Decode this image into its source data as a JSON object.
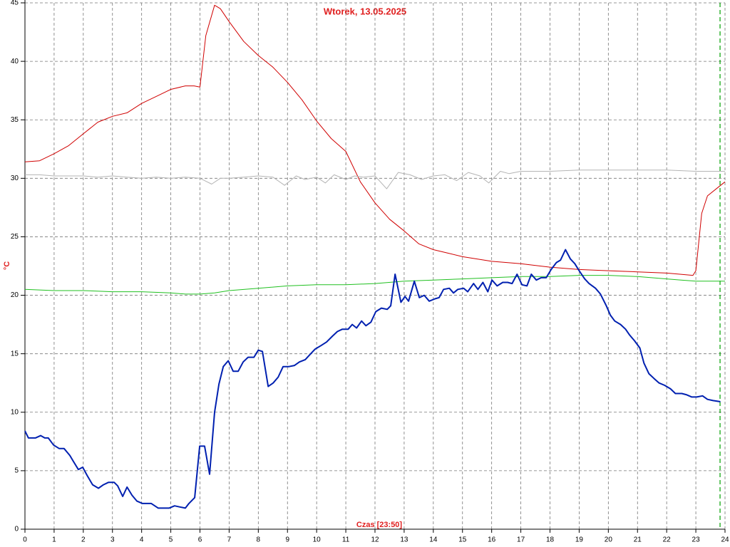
{
  "chart_data": {
    "type": "line",
    "title": "Wtorek, 13.05.2025",
    "x_label": "Czas [23:50]",
    "y_label": "°C",
    "xlim": [
      0,
      24
    ],
    "ylim": [
      0,
      45
    ],
    "xticks": [
      0,
      1,
      2,
      3,
      4,
      5,
      6,
      7,
      8,
      9,
      10,
      11,
      12,
      13,
      14,
      15,
      16,
      17,
      18,
      19,
      20,
      21,
      22,
      23,
      24
    ],
    "yticks": [
      0,
      5,
      10,
      15,
      20,
      25,
      30,
      35,
      40,
      45
    ],
    "grid": true,
    "marker_x": 23.83,
    "marker_color": "#00a000",
    "series": [
      {
        "color": "#d00000",
        "width": 1,
        "x": [
          0,
          0.5,
          1,
          1.5,
          2,
          2.5,
          3,
          3.5,
          4,
          4.5,
          5,
          5.5,
          5.8,
          6,
          6.2,
          6.5,
          6.7,
          7,
          7.5,
          8,
          8.5,
          9,
          9.5,
          10,
          10.5,
          11,
          11.5,
          12,
          12.5,
          13,
          13.5,
          14,
          14.5,
          15,
          16,
          17,
          18,
          19,
          20,
          21,
          22,
          22.9,
          23,
          23.2,
          23.4,
          23.8,
          24
        ],
        "values": [
          31.4,
          31.5,
          32.1,
          32.8,
          33.8,
          34.8,
          35.3,
          35.6,
          36.4,
          37.0,
          37.6,
          37.9,
          37.9,
          37.8,
          42.2,
          44.8,
          44.5,
          43.4,
          41.7,
          40.5,
          39.5,
          38.2,
          36.7,
          34.9,
          33.4,
          32.3,
          29.7,
          27.9,
          26.5,
          25.5,
          24.4,
          23.9,
          23.6,
          23.3,
          22.9,
          22.7,
          22.4,
          22.2,
          22.1,
          22.0,
          21.9,
          21.7,
          22.1,
          27.0,
          28.5,
          29.3,
          29.7
        ]
      },
      {
        "color": "#b4b4b4",
        "width": 1,
        "x": [
          0,
          0.5,
          1,
          1.5,
          2,
          2.5,
          3,
          3.5,
          4,
          4.5,
          5,
          5.5,
          6,
          6.4,
          6.7,
          7,
          7.5,
          8,
          8.5,
          8.9,
          9.3,
          9.6,
          10,
          10.3,
          10.6,
          11,
          11.3,
          11.6,
          12,
          12.4,
          12.8,
          13.2,
          13.6,
          14,
          14.4,
          14.8,
          15.2,
          15.6,
          15.9,
          16.3,
          16.6,
          17,
          17.5,
          18,
          19,
          20,
          21,
          22,
          23,
          24
        ],
        "values": [
          30.3,
          30.3,
          30.2,
          30.2,
          30.2,
          30.1,
          30.2,
          30.1,
          30.0,
          30.1,
          30.0,
          30.1,
          30.0,
          29.5,
          30.0,
          30.0,
          30.1,
          30.2,
          30.1,
          29.4,
          30.2,
          29.9,
          30.1,
          29.6,
          30.3,
          29.9,
          30.2,
          30.1,
          30.2,
          29.1,
          30.5,
          30.3,
          29.9,
          30.2,
          30.3,
          29.8,
          30.5,
          30.2,
          29.6,
          30.6,
          30.4,
          30.6,
          30.6,
          30.6,
          30.7,
          30.7,
          30.7,
          30.7,
          30.6,
          30.6
        ]
      },
      {
        "color": "#20c020",
        "width": 1,
        "x": [
          0,
          1,
          2,
          3,
          4,
          5,
          5.5,
          6,
          6.5,
          7,
          8,
          9,
          10,
          11,
          12,
          13,
          14,
          15,
          16,
          17,
          18,
          19,
          19.5,
          20,
          21,
          22,
          22.5,
          23,
          24
        ],
        "values": [
          20.5,
          20.4,
          20.4,
          20.3,
          20.3,
          20.2,
          20.1,
          20.1,
          20.2,
          20.4,
          20.6,
          20.8,
          20.9,
          20.9,
          21.0,
          21.2,
          21.3,
          21.4,
          21.5,
          21.6,
          21.6,
          21.7,
          21.7,
          21.7,
          21.6,
          21.4,
          21.3,
          21.2,
          21.2
        ]
      },
      {
        "color": "#0020b0",
        "width": 2,
        "x": [
          0,
          0.12,
          0.36,
          0.54,
          0.68,
          0.8,
          0.98,
          1.17,
          1.34,
          1.54,
          1.66,
          1.83,
          1.98,
          2.13,
          2.32,
          2.52,
          2.69,
          2.86,
          3.06,
          3.18,
          3.35,
          3.5,
          3.67,
          3.84,
          4.03,
          4.33,
          4.57,
          4.94,
          5.13,
          5.31,
          5.5,
          5.62,
          5.82,
          5.99,
          6.16,
          6.33,
          6.5,
          6.65,
          6.8,
          6.97,
          7.14,
          7.31,
          7.48,
          7.65,
          7.85,
          8.0,
          8.14,
          8.34,
          8.51,
          8.68,
          8.85,
          9.05,
          9.24,
          9.41,
          9.61,
          9.76,
          9.95,
          10.15,
          10.34,
          10.54,
          10.71,
          10.88,
          11.08,
          11.22,
          11.37,
          11.54,
          11.69,
          11.86,
          12.03,
          12.22,
          12.42,
          12.54,
          12.69,
          12.89,
          13.03,
          13.15,
          13.35,
          13.52,
          13.69,
          13.86,
          14.06,
          14.2,
          14.35,
          14.55,
          14.69,
          14.84,
          15.04,
          15.18,
          15.38,
          15.53,
          15.7,
          15.87,
          16.01,
          16.19,
          16.38,
          16.55,
          16.7,
          16.87,
          17.04,
          17.21,
          17.36,
          17.53,
          17.7,
          17.87,
          18.04,
          18.22,
          18.36,
          18.53,
          18.7,
          18.85,
          19.0,
          19.19,
          19.34,
          19.56,
          19.73,
          19.93,
          20.07,
          20.22,
          20.42,
          20.59,
          20.73,
          20.9,
          21.08,
          21.22,
          21.39,
          21.56,
          21.74,
          21.93,
          22.13,
          22.3,
          22.52,
          22.67,
          22.86,
          23.03,
          23.23,
          23.4,
          23.59,
          23.84
        ],
        "values": [
          8.4,
          7.8,
          7.8,
          8.0,
          7.8,
          7.8,
          7.2,
          6.9,
          6.9,
          6.3,
          5.8,
          5.1,
          5.3,
          4.6,
          3.8,
          3.5,
          3.8,
          4.0,
          4.0,
          3.7,
          2.8,
          3.6,
          2.9,
          2.4,
          2.2,
          2.2,
          1.8,
          1.8,
          2.0,
          1.9,
          1.8,
          2.2,
          2.7,
          7.1,
          7.1,
          4.7,
          10.0,
          12.4,
          13.9,
          14.4,
          13.5,
          13.5,
          14.3,
          14.7,
          14.7,
          15.3,
          15.2,
          12.2,
          12.5,
          13.0,
          13.9,
          13.9,
          14.0,
          14.3,
          14.5,
          14.9,
          15.4,
          15.7,
          16.0,
          16.5,
          16.9,
          17.1,
          17.1,
          17.5,
          17.2,
          17.8,
          17.4,
          17.7,
          18.6,
          18.9,
          18.8,
          19.1,
          21.8,
          19.4,
          19.9,
          19.5,
          21.2,
          19.8,
          20.0,
          19.5,
          19.7,
          19.8,
          20.5,
          20.6,
          20.2,
          20.5,
          20.6,
          20.3,
          21.0,
          20.5,
          21.1,
          20.3,
          21.3,
          20.8,
          21.1,
          21.1,
          21.0,
          21.8,
          20.9,
          20.8,
          21.8,
          21.3,
          21.5,
          21.5,
          22.2,
          22.8,
          23.0,
          23.9,
          23.1,
          22.7,
          22.1,
          21.4,
          21.0,
          20.6,
          20.1,
          19.1,
          18.3,
          17.8,
          17.5,
          17.1,
          16.6,
          16.1,
          15.5,
          14.2,
          13.3,
          12.9,
          12.5,
          12.3,
          12.0,
          11.6,
          11.6,
          11.5,
          11.3,
          11.3,
          11.4,
          11.1,
          11.0,
          10.9
        ]
      }
    ]
  }
}
